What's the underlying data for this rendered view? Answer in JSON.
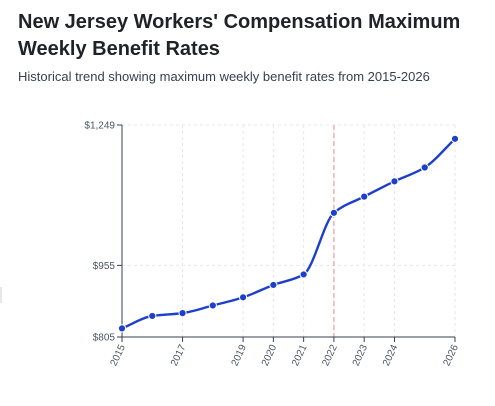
{
  "header": {
    "title": "New Jersey Workers' Compensation Maximum Weekly Benefit Rates",
    "subtitle": "Historical trend showing maximum weekly benefit rates from 2015-2026"
  },
  "colors": {
    "line": "#1d3fcc",
    "reference_line": "#e8a0a0",
    "grid": "#e5e7eb",
    "axis": "#374151"
  },
  "chart_data": {
    "type": "line",
    "title": "New Jersey Workers' Compensation Maximum Weekly Benefit Rates",
    "subtitle": "Historical trend showing maximum weekly benefit rates from 2015-2026",
    "xlabel": "",
    "ylabel": "",
    "x": [
      2015,
      2016,
      2017,
      2018,
      2019,
      2020,
      2021,
      2022,
      2023,
      2024,
      2025,
      2026
    ],
    "series": [
      {
        "values": [
          823,
          849,
          855,
          871,
          888,
          914,
          936,
          1065,
          1099,
          1131,
          1160,
          1220
        ]
      }
    ],
    "x_tick_labels": [
      "2015",
      "2017",
      "2019",
      "2020",
      "2021",
      "2022",
      "2023",
      "2024",
      "2026"
    ],
    "x_ticks": [
      2015,
      2017,
      2019,
      2020,
      2021,
      2022,
      2023,
      2024,
      2026
    ],
    "y_tick_labels": [
      "$805",
      "$955",
      "$1,249"
    ],
    "y_ticks": [
      805,
      955,
      1249
    ],
    "xlim": [
      2015,
      2026
    ],
    "ylim": [
      805,
      1249
    ],
    "reference_line_x": 2022,
    "grid": true,
    "legend": "none"
  }
}
